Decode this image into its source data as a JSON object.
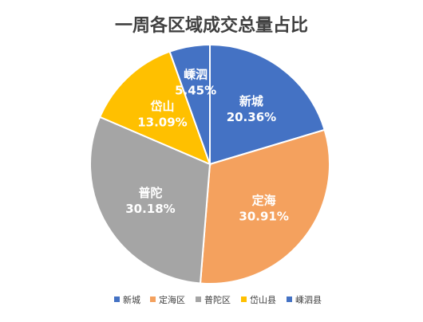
{
  "chart_data": {
    "type": "pie",
    "title": "一周各区域成交总量占比",
    "categories": [
      "新城",
      "定海区",
      "普陀区",
      "岱山县",
      "嵊泗县"
    ],
    "slice_labels": [
      "新城",
      "定海",
      "普陀",
      "岱山",
      "嵊泗"
    ],
    "values": [
      20.36,
      30.91,
      30.18,
      13.09,
      5.45
    ],
    "value_labels": [
      "20.36%",
      "30.91%",
      "30.18%",
      "13.09%",
      "5.45%"
    ],
    "colors": [
      "#4472C4",
      "#F4A15E",
      "#A5A5A5",
      "#FFC000",
      "#4472C4"
    ],
    "legend_position": "bottom"
  }
}
